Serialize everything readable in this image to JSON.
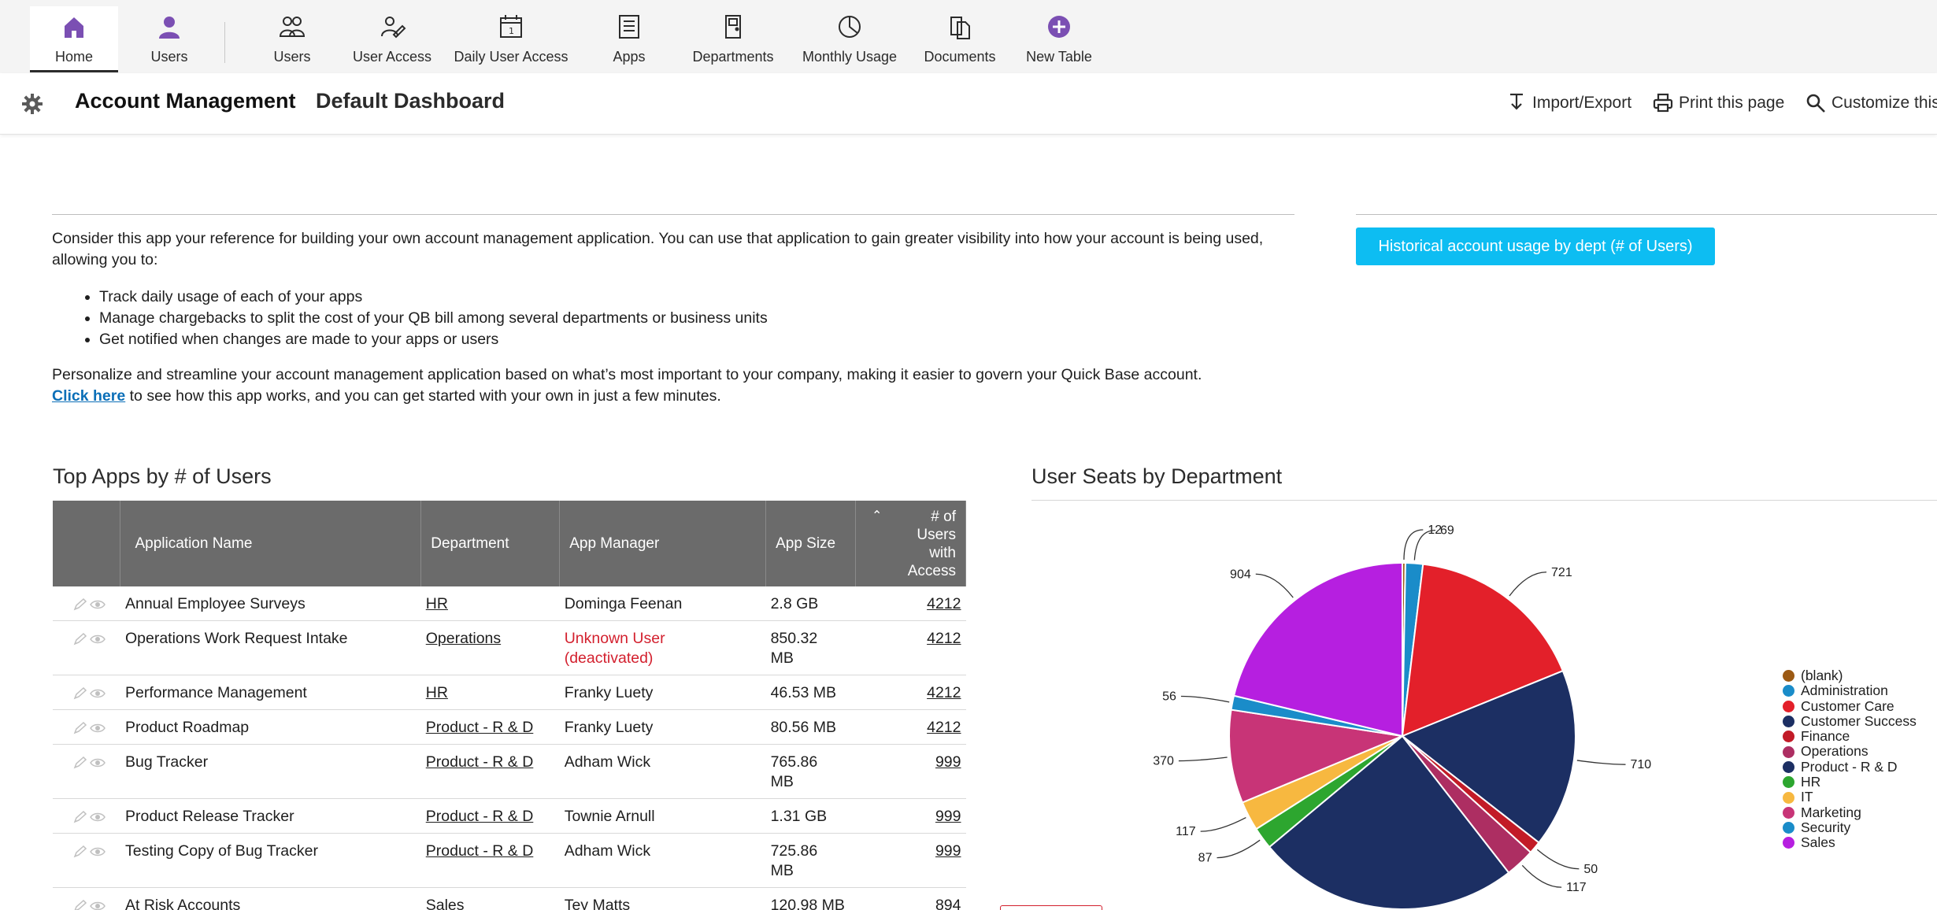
{
  "nav": {
    "items": [
      {
        "label": "Home",
        "icon": "home-icon"
      },
      {
        "label": "Users",
        "icon": "user-icon"
      },
      {
        "label": "Users",
        "icon": "users-group-icon"
      },
      {
        "label": "User Access",
        "icon": "user-access-icon"
      },
      {
        "label": "Daily User Access",
        "icon": "calendar-icon"
      },
      {
        "label": "Apps",
        "icon": "apps-list-icon"
      },
      {
        "label": "Departments",
        "icon": "door-icon"
      },
      {
        "label": "Monthly Usage",
        "icon": "pie-chart-icon"
      },
      {
        "label": "Documents",
        "icon": "documents-icon"
      },
      {
        "label": "New Table",
        "icon": "plus-circle-icon"
      }
    ],
    "accent": "#7b4fb3"
  },
  "header": {
    "app_title": "Account Management",
    "dashboard_title": "Default Dashboard",
    "tools": {
      "import_export": "Import/Export",
      "print": "Print this page",
      "customize": "Customize this"
    }
  },
  "intro": {
    "paragraph1": "Consider this app your reference for building your own account management application. You can use that application to gain greater visibility into how your account is being used, allowing you to:",
    "bullets": [
      "Track daily usage of each of your apps",
      "Manage chargebacks to split the cost of your QB bill among several departments or business units",
      "Get notified when changes are made to your apps or users"
    ],
    "paragraph2": "Personalize and streamline your account management application based on what’s most important to your company, making it easier to govern your Quick Base account.",
    "link_text": "Click here",
    "link_suffix": " to see how this app works, and you can get started with your own in just a few minutes.",
    "history_button": "Historical account usage by dept (# of Users)"
  },
  "table": {
    "title": "Top Apps by # of Users",
    "columns": [
      "Application Name",
      "Department",
      "App Manager",
      "App Size"
    ],
    "users_col": [
      "# of",
      "Users",
      "with",
      "Access"
    ],
    "rows": [
      {
        "name": "Annual Employee Surveys",
        "dept": "HR",
        "manager": "Dominga Feenan",
        "manager2": "",
        "size": "2.8 GB",
        "size2": "",
        "users": "4212",
        "deact": false
      },
      {
        "name": "Operations Work Request Intake",
        "dept": "Operations",
        "manager": "Unknown User",
        "manager2": "(deactivated)",
        "size": "850.32",
        "size2": "MB",
        "users": "4212",
        "deact": true
      },
      {
        "name": "Performance Management",
        "dept": "HR",
        "manager": "Franky Luety",
        "manager2": "",
        "size": "46.53 MB",
        "size2": "",
        "users": "4212",
        "deact": false
      },
      {
        "name": "Product Roadmap",
        "dept": "Product - R & D",
        "manager": "Franky Luety",
        "manager2": "",
        "size": "80.56 MB",
        "size2": "",
        "users": "4212",
        "deact": false
      },
      {
        "name": "Bug Tracker",
        "dept": "Product - R & D",
        "manager": "Adham Wick",
        "manager2": "",
        "size": "765.86",
        "size2": "MB",
        "users": "999",
        "deact": false
      },
      {
        "name": "Product Release Tracker",
        "dept": "Product - R & D",
        "manager": "Townie Arnull",
        "manager2": "",
        "size": "1.31 GB",
        "size2": "",
        "users": "999",
        "deact": false
      },
      {
        "name": "Testing Copy of Bug Tracker",
        "dept": "Product - R & D",
        "manager": "Adham Wick",
        "manager2": "",
        "size": "725.86",
        "size2": "MB",
        "users": "999",
        "deact": false
      },
      {
        "name": "At Risk Accounts",
        "dept": "Sales",
        "manager": "Tey Matts",
        "manager2": "",
        "size": "120.98 MB",
        "size2": "",
        "users": "894",
        "deact": false
      }
    ]
  },
  "chart_data": {
    "type": "pie",
    "title": "User Seats by Department",
    "legend_position": "right",
    "slices": [
      {
        "label": "(blank)",
        "value": 12,
        "color": "#9c5a14"
      },
      {
        "label": "Administration",
        "value": 69,
        "color": "#1a8cc9"
      },
      {
        "label": "Customer Care",
        "value": 721,
        "color": "#e3202a"
      },
      {
        "label": "Customer Success",
        "value": 710,
        "color": "#1c2f63"
      },
      {
        "label": "Finance",
        "value": 50,
        "color": "#c21b27"
      },
      {
        "label": "Operations",
        "value": 117,
        "color": "#ad2e62"
      },
      {
        "label": "Product - R & D",
        "value": 1040,
        "color": "#1c2f63"
      },
      {
        "label": "HR",
        "value": 87,
        "color": "#2da62f"
      },
      {
        "label": "IT",
        "value": 117,
        "color": "#f7b840"
      },
      {
        "label": "Marketing",
        "value": 370,
        "color": "#c83477"
      },
      {
        "label": "Security",
        "value": 56,
        "color": "#1a8cc9"
      },
      {
        "label": "Sales",
        "value": 904,
        "color": "#b61fe0"
      }
    ]
  }
}
